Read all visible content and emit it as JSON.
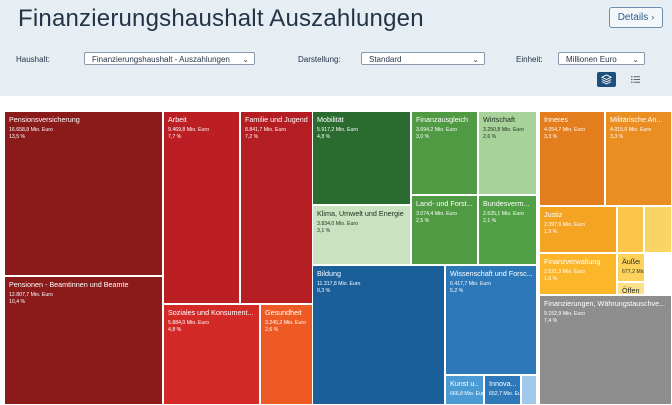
{
  "page": {
    "title": "Finanzierungshaushalt Auszahlungen",
    "details_label": "Details"
  },
  "controls": {
    "haushalt_label": "Haushalt:",
    "haushalt_value": "Finanzierungshaushalt - Auszahlungen",
    "darstellung_label": "Darstellung:",
    "darstellung_value": "Standard",
    "einheit_label": "Einheit:",
    "einheit_value": "Millionen Euro"
  },
  "view_toggle": {
    "active": "treemap",
    "icons": [
      "layers-icon",
      "list-icon"
    ]
  },
  "colors": {
    "header_bg": "#e6edf3",
    "accent": "#1d4f7c"
  },
  "chart_data": {
    "type": "treemap",
    "unit": "Mio. Euro",
    "groups": [
      {
        "tiles": [
          {
            "name": "Pensionsversicherung",
            "value": "16.658,8 Mio. Euro",
            "pct": "13,5 %",
            "color": "#8b1a1a"
          },
          {
            "name": "Pensionen - Beamtinnen und Beamte",
            "value": "12.807,7 Mio. Euro",
            "pct": "10,4 %",
            "color": "#8b1a1a"
          },
          {
            "name": "Arbeit",
            "value": "9.469,8 Mio. Euro",
            "pct": "7,7 %",
            "color": "#bb1f24"
          },
          {
            "name": "Familie und Jugend",
            "value": "8.841,7 Mio. Euro",
            "pct": "7,2 %",
            "color": "#b41e22"
          },
          {
            "name": "Soziales und Konsument...",
            "value": "5.884,0 Mio. Euro",
            "pct": "4,8 %",
            "color": "#d42a27"
          },
          {
            "name": "Gesundheit",
            "value": "3.245,2 Mio. Euro",
            "pct": "2,6 %",
            "color": "#ee5a24"
          }
        ]
      },
      {
        "tiles": [
          {
            "name": "Mobilität",
            "value": "5.917,2 Mio. Euro",
            "pct": "4,8 %",
            "color": "#2a6b2f"
          },
          {
            "name": "Finanzausgleich",
            "value": "3.694,2 Mio. Euro",
            "pct": "3,0 %",
            "color": "#4f9a43"
          },
          {
            "name": "Wirtschaft",
            "value": "3.250,8 Mio. Euro",
            "pct": "2,6 %",
            "color": "#a7d29a"
          },
          {
            "name": "Klima, Umwelt und Energie",
            "value": "3.834,0 Mio. Euro",
            "pct": "3,1 %",
            "color": "#c9e2bf"
          },
          {
            "name": "Land- und Forst...",
            "value": "3.074,4 Mio. Euro",
            "pct": "2,5 %",
            "color": "#4f9a43"
          },
          {
            "name": "Bundesverm...",
            "value": "2.635,1 Mio. Euro",
            "pct": "2,1 %",
            "color": "#52a046"
          }
        ]
      },
      {
        "tiles": [
          {
            "name": "Bildung",
            "value": "11.317,8 Mio. Euro",
            "pct": "9,3 %",
            "color": "#1a5e9a"
          },
          {
            "name": "Wissenschaft und Forsc...",
            "value": "6.417,7 Mio. Euro",
            "pct": "5,2 %",
            "color": "#2d78b8"
          },
          {
            "name": "Kunst u...",
            "value": "666,8 Mio. Euro",
            "pct": "",
            "color": "#4a9ad4"
          },
          {
            "name": "Innova...",
            "value": "652,7 Mio. Euro",
            "pct": "",
            "color": "#2d78b8"
          },
          {
            "name": "",
            "value": "",
            "pct": "",
            "color": "#9fc8eb"
          }
        ]
      },
      {
        "tiles": [
          {
            "name": "Inneres",
            "value": "4.054,7 Mio. Euro",
            "pct": "3,3 %",
            "color": "#e47d1d"
          },
          {
            "name": "Militärische An...",
            "value": "4.015,0 Mio. Euro",
            "pct": "3,3 %",
            "color": "#ea8e22"
          },
          {
            "name": "Justiz",
            "value": "2.397,9 Mio. Euro",
            "pct": "1,9 %",
            "color": "#f4a323"
          },
          {
            "name": "",
            "value": "",
            "pct": "",
            "color": "#fbc548"
          },
          {
            "name": "",
            "value": "",
            "pct": "",
            "color": "#fbd466"
          },
          {
            "name": "Finanzverwaltung",
            "value": "2.021,3 Mio. Euro",
            "pct": "1,6 %",
            "color": "#fbb62a"
          },
          {
            "name": "Äußeres",
            "value": "677,2 Mio. Euro",
            "pct": "",
            "color": "#fcd25a"
          },
          {
            "name": "Öffentl...",
            "value": "",
            "pct": "",
            "color": "#fde08a"
          },
          {
            "name": "Finanzierungen, Währungstauschve...",
            "value": "9.152,9 Mio. Euro",
            "pct": "7,4 %",
            "color": "#8e8e8e"
          }
        ]
      }
    ]
  }
}
